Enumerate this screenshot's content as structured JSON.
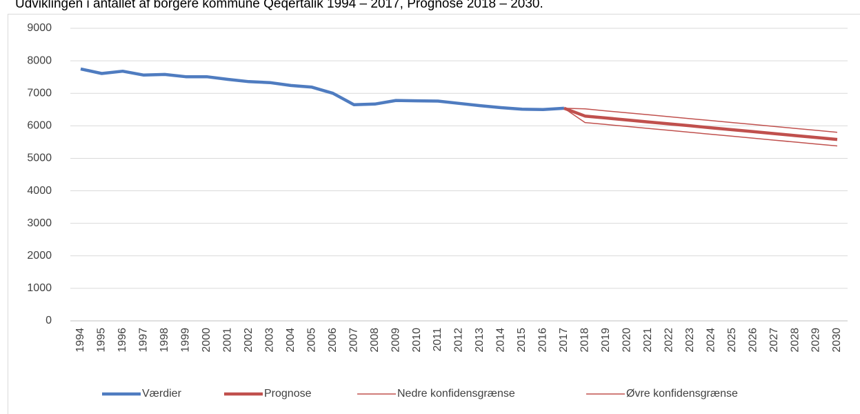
{
  "chart_data": {
    "type": "line",
    "title": "Udviklingen i antallet af borgere kommune Qeqertalik 1994 – 2017, Prognose 2018 – 2030.",
    "categories": [
      "1994",
      "1995",
      "1996",
      "1997",
      "1998",
      "1999",
      "2000",
      "2001",
      "2002",
      "2003",
      "2004",
      "2005",
      "2006",
      "2007",
      "2008",
      "2009",
      "2010",
      "2011",
      "2012",
      "2013",
      "2014",
      "2015",
      "2016",
      "2017",
      "2018",
      "2019",
      "2020",
      "2021",
      "2022",
      "2023",
      "2024",
      "2025",
      "2026",
      "2027",
      "2028",
      "2029",
      "2030"
    ],
    "series": [
      {
        "name": "Værdier",
        "color": "#4f7cc0",
        "values": [
          7750,
          7610,
          7680,
          7560,
          7580,
          7510,
          7510,
          7430,
          7360,
          7330,
          7240,
          7190,
          7000,
          6650,
          6670,
          6780,
          6770,
          6760,
          6690,
          6620,
          6560,
          6510,
          6500,
          6540,
          null,
          null,
          null,
          null,
          null,
          null,
          null,
          null,
          null,
          null,
          null,
          null,
          null
        ]
      },
      {
        "name": "Prognose",
        "color": "#c0504d",
        "values": [
          null,
          null,
          null,
          null,
          null,
          null,
          null,
          null,
          null,
          null,
          null,
          null,
          null,
          null,
          null,
          null,
          null,
          null,
          null,
          null,
          null,
          null,
          null,
          6540,
          6300,
          6240,
          6180,
          6120,
          6060,
          6000,
          5940,
          5880,
          5820,
          5760,
          5700,
          5640,
          5580
        ]
      },
      {
        "name": "Nedre konfidensgrænse",
        "color": "#c0504d",
        "values": [
          null,
          null,
          null,
          null,
          null,
          null,
          null,
          null,
          null,
          null,
          null,
          null,
          null,
          null,
          null,
          null,
          null,
          null,
          null,
          null,
          null,
          null,
          null,
          6540,
          6100,
          6040,
          5980,
          5920,
          5860,
          5800,
          5740,
          5680,
          5620,
          5560,
          5500,
          5440,
          5380
        ]
      },
      {
        "name": "Øvre konfidensgrænse",
        "color": "#c0504d",
        "values": [
          null,
          null,
          null,
          null,
          null,
          null,
          null,
          null,
          null,
          null,
          null,
          null,
          null,
          null,
          null,
          null,
          null,
          null,
          null,
          null,
          null,
          null,
          null,
          6540,
          6520,
          6460,
          6400,
          6340,
          6280,
          6220,
          6160,
          6100,
          6040,
          5980,
          5920,
          5860,
          5800
        ]
      }
    ],
    "ylim": [
      0,
      9000
    ],
    "yticks": [
      0,
      1000,
      2000,
      3000,
      4000,
      5000,
      6000,
      7000,
      8000,
      9000
    ],
    "grid": true
  }
}
